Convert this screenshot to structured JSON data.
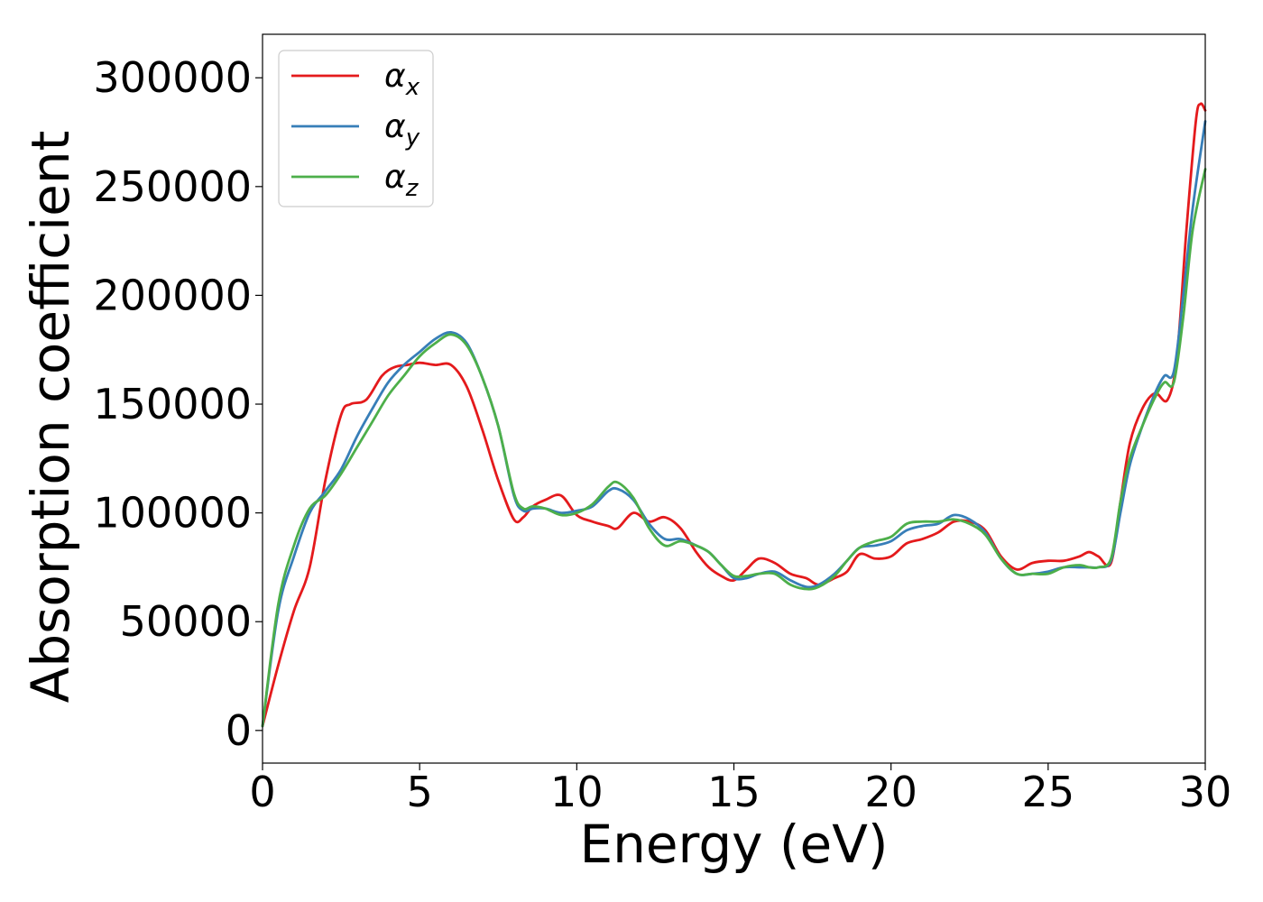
{
  "chart_data": {
    "type": "line",
    "xlabel": "Energy (eV)",
    "ylabel": "Absorption coefficient",
    "xlim": [
      0,
      30
    ],
    "ylim": [
      -15000,
      320000
    ],
    "xticks": [
      0,
      5,
      10,
      15,
      20,
      25,
      30
    ],
    "xtick_labels": [
      "0",
      "5",
      "10",
      "15",
      "20",
      "25",
      "30"
    ],
    "yticks": [
      0,
      50000,
      100000,
      150000,
      200000,
      250000,
      300000
    ],
    "ytick_labels": [
      "0",
      "50000",
      "100000",
      "150000",
      "200000",
      "250000",
      "300000"
    ],
    "grid": false,
    "legend_position": "top-left",
    "series": [
      {
        "name": "αx",
        "label_base": "α",
        "label_sub": "x",
        "color": "#e41a1c",
        "x": [
          0,
          0.5,
          1,
          1.5,
          2,
          2.5,
          2.8,
          3.3,
          3.8,
          4.2,
          4.6,
          5,
          5.5,
          6,
          6.5,
          7,
          7.5,
          8,
          8.3,
          8.6,
          9,
          9.5,
          10,
          10.5,
          11,
          11.3,
          11.8,
          12.3,
          12.8,
          13.3,
          13.8,
          14.2,
          14.6,
          15,
          15.4,
          15.8,
          16.3,
          16.8,
          17.3,
          17.7,
          18.2,
          18.6,
          19,
          19.5,
          20,
          20.5,
          21,
          21.5,
          22,
          22.5,
          23,
          23.5,
          24,
          24.5,
          25,
          25.5,
          26,
          26.3,
          26.6,
          27,
          27.3,
          27.6,
          28,
          28.4,
          28.8,
          29.1,
          29.4,
          29.7,
          29.85,
          30
        ],
        "y": [
          2000,
          30000,
          55000,
          75000,
          115000,
          145000,
          150000,
          152000,
          163000,
          167000,
          168000,
          169000,
          168000,
          168000,
          158000,
          138000,
          115000,
          97000,
          98000,
          103000,
          106000,
          108000,
          99000,
          96000,
          94000,
          93000,
          100000,
          96000,
          98000,
          93000,
          82000,
          75000,
          71000,
          69000,
          74000,
          79000,
          77000,
          72000,
          70000,
          67000,
          70000,
          73000,
          81000,
          79000,
          80000,
          86000,
          88000,
          91000,
          96000,
          96000,
          92000,
          80000,
          74000,
          77000,
          78000,
          78000,
          80000,
          82000,
          80000,
          77000,
          105000,
          132000,
          148000,
          155000,
          152000,
          172000,
          230000,
          280000,
          288000,
          285000
        ]
      },
      {
        "name": "αy",
        "label_base": "α",
        "label_sub": "y",
        "color": "#377eb8",
        "x": [
          0,
          0.5,
          1,
          1.5,
          2,
          2.5,
          3,
          3.5,
          4,
          4.5,
          5,
          5.5,
          6,
          6.5,
          7,
          7.5,
          8,
          8.3,
          8.6,
          9,
          9.5,
          10,
          10.5,
          11,
          11.3,
          11.8,
          12.3,
          12.8,
          13.3,
          13.8,
          14.2,
          14.6,
          15,
          15.4,
          15.8,
          16.3,
          16.8,
          17.3,
          17.7,
          18.2,
          18.6,
          19,
          19.5,
          20,
          20.5,
          21,
          21.5,
          22,
          22.5,
          23,
          23.5,
          24,
          24.5,
          25,
          25.5,
          26,
          26.3,
          26.6,
          27,
          27.3,
          27.6,
          28,
          28.4,
          28.7,
          29,
          29.3,
          29.6,
          30
        ],
        "y": [
          2000,
          55000,
          80000,
          100000,
          110000,
          120000,
          135000,
          148000,
          160000,
          168000,
          174000,
          180000,
          183000,
          178000,
          162000,
          140000,
          108000,
          101000,
          102000,
          102000,
          100000,
          101000,
          103000,
          110000,
          111000,
          106000,
          95000,
          88000,
          88000,
          85000,
          82000,
          76000,
          70000,
          70000,
          72000,
          73000,
          69000,
          66000,
          67000,
          72000,
          78000,
          84000,
          85000,
          87000,
          92000,
          94000,
          95000,
          99000,
          97000,
          91000,
          79000,
          72000,
          72000,
          73000,
          75000,
          75000,
          75000,
          75000,
          78000,
          100000,
          122000,
          140000,
          155000,
          163000,
          165000,
          200000,
          240000,
          280000
        ]
      },
      {
        "name": "αz",
        "label_base": "α",
        "label_sub": "z",
        "color": "#4daf4a",
        "x": [
          0,
          0.5,
          1,
          1.5,
          2,
          2.5,
          3,
          3.5,
          4,
          4.5,
          5,
          5.5,
          6,
          6.5,
          7,
          7.5,
          8,
          8.3,
          8.6,
          9,
          9.5,
          10,
          10.5,
          11,
          11.3,
          11.8,
          12.3,
          12.8,
          13.3,
          13.8,
          14.2,
          14.6,
          15,
          15.4,
          15.8,
          16.3,
          16.8,
          17.3,
          17.7,
          18.2,
          18.6,
          19,
          19.5,
          20,
          20.5,
          21,
          21.5,
          22,
          22.5,
          23,
          23.5,
          24,
          24.5,
          25,
          25.5,
          26,
          26.3,
          26.6,
          27,
          27.3,
          27.6,
          28,
          28.4,
          28.7,
          29,
          29.3,
          29.6,
          30
        ],
        "y": [
          2000,
          58000,
          85000,
          102000,
          108000,
          118000,
          130000,
          142000,
          154000,
          163000,
          172000,
          178000,
          182000,
          177000,
          162000,
          140000,
          109000,
          102000,
          103000,
          102000,
          99000,
          100000,
          104000,
          112000,
          114000,
          107000,
          93000,
          85000,
          87000,
          85000,
          82000,
          76000,
          71000,
          71000,
          72000,
          72000,
          67000,
          65000,
          66000,
          71000,
          78000,
          84000,
          87000,
          89000,
          95000,
          96000,
          96000,
          97000,
          95000,
          90000,
          79000,
          72000,
          72000,
          72000,
          75000,
          76000,
          75000,
          75000,
          79000,
          105000,
          125000,
          140000,
          153000,
          160000,
          160000,
          190000,
          230000,
          258000
        ]
      }
    ]
  }
}
